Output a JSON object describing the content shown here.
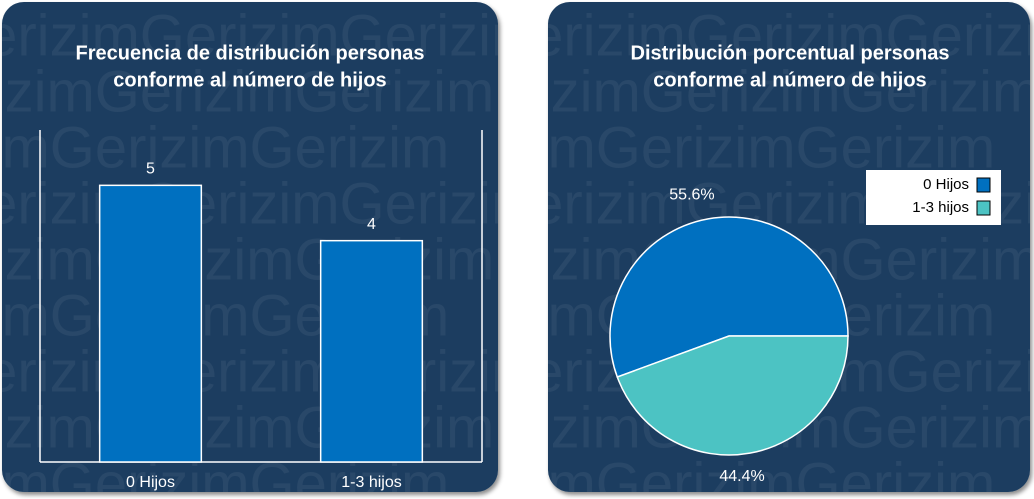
{
  "watermark": "GerizimGerizimGerizim",
  "chart_data": [
    {
      "type": "bar",
      "title": [
        "Frecuencia de distribución personas",
        "conforme al número de hijos"
      ],
      "categories": [
        "0 Hijos",
        "1-3 hijos"
      ],
      "values": [
        5,
        4
      ],
      "color": "#0070c0",
      "ylim": [
        0,
        6
      ],
      "data_labels": true
    },
    {
      "type": "pie",
      "title": [
        "Distribución porcentual personas",
        "conforme al número de hijos"
      ],
      "categories": [
        "0 Hijos",
        "1-3 hijos"
      ],
      "values": [
        55.6,
        44.4
      ],
      "value_labels": [
        "55.6%",
        "44.4%"
      ],
      "colors": [
        "#0070c0",
        "#4cc3c3"
      ],
      "legend": "upper right"
    }
  ]
}
